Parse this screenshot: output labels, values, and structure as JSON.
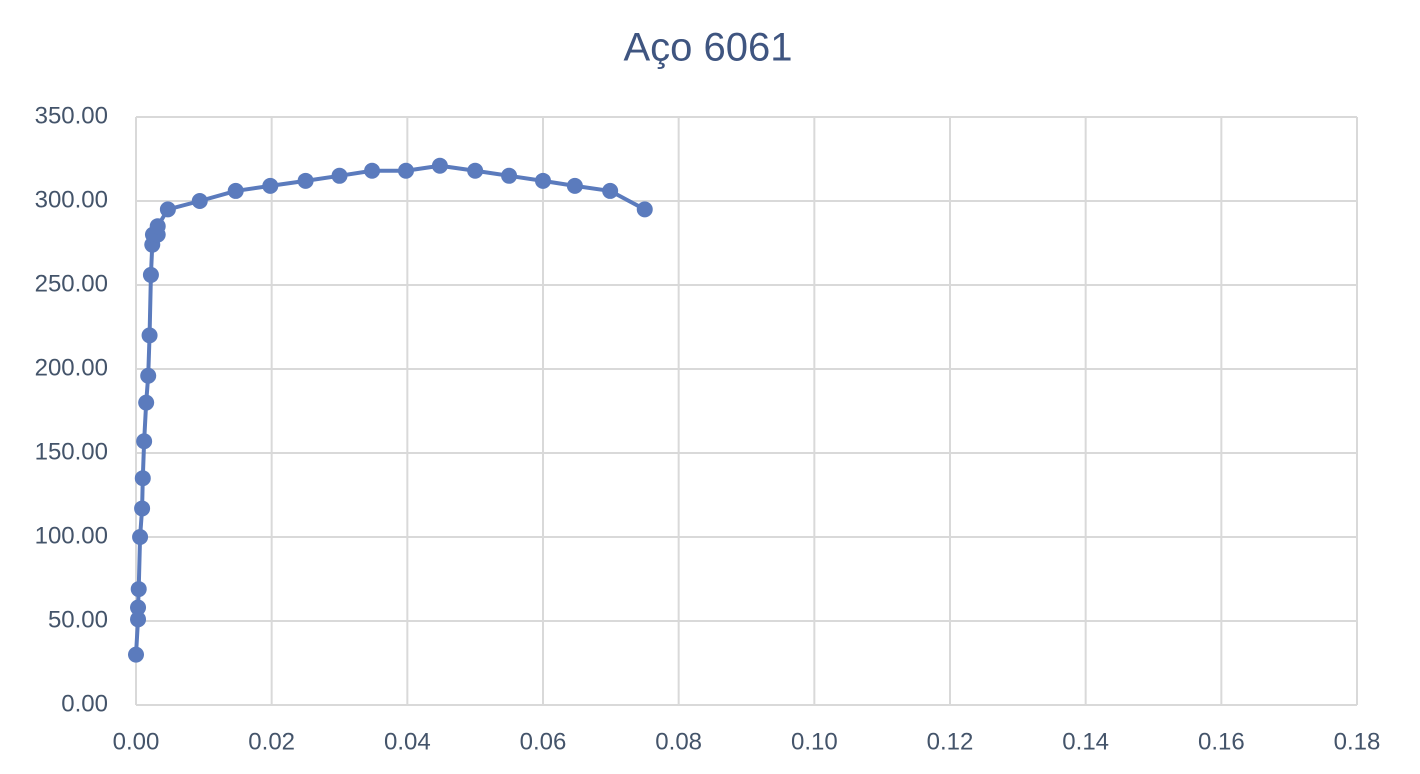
{
  "chart_data": {
    "type": "scatter-line",
    "title": "Aço 6061",
    "x": [
      0.0,
      0.0003,
      0.0003,
      0.0004,
      0.0006,
      0.0009,
      0.001,
      0.0012,
      0.0015,
      0.0018,
      0.002,
      0.0022,
      0.0024,
      0.0025,
      0.0032,
      0.0032,
      0.0047,
      0.0094,
      0.0147,
      0.0198,
      0.025,
      0.03,
      0.0348,
      0.0398,
      0.0448,
      0.05,
      0.055,
      0.06,
      0.0647,
      0.0699,
      0.075
    ],
    "values": [
      30,
      51,
      58,
      69,
      100,
      117,
      135,
      157,
      180,
      196,
      220,
      256,
      274,
      280,
      280,
      285,
      295,
      300,
      306,
      309,
      312,
      315,
      318,
      318,
      321,
      318,
      315,
      312,
      309,
      306,
      295
    ],
    "color": "#5b7bbd",
    "xlim": [
      0,
      0.18
    ],
    "xticks": [
      {
        "value": 0,
        "label": "0.00"
      },
      {
        "value": 0.02,
        "label": "0.02"
      },
      {
        "value": 0.04,
        "label": "0.04"
      },
      {
        "value": 0.06,
        "label": "0.06"
      },
      {
        "value": 0.08,
        "label": "0.08"
      },
      {
        "value": 0.1,
        "label": "0.10"
      },
      {
        "value": 0.12,
        "label": "0.12"
      },
      {
        "value": 0.14,
        "label": "0.14"
      },
      {
        "value": 0.16,
        "label": "0.16"
      },
      {
        "value": 0.18,
        "label": "0.18"
      }
    ],
    "ylim": [
      0,
      350
    ],
    "yticks": [
      {
        "value": 0,
        "label": "0.00"
      },
      {
        "value": 50,
        "label": "50.00"
      },
      {
        "value": 100,
        "label": "100.00"
      },
      {
        "value": 150,
        "label": "150.00"
      },
      {
        "value": 200,
        "label": "200.00"
      },
      {
        "value": 250,
        "label": "250.00"
      },
      {
        "value": 300,
        "label": "300.00"
      },
      {
        "value": 350,
        "label": "350.00"
      }
    ],
    "grid": true
  }
}
